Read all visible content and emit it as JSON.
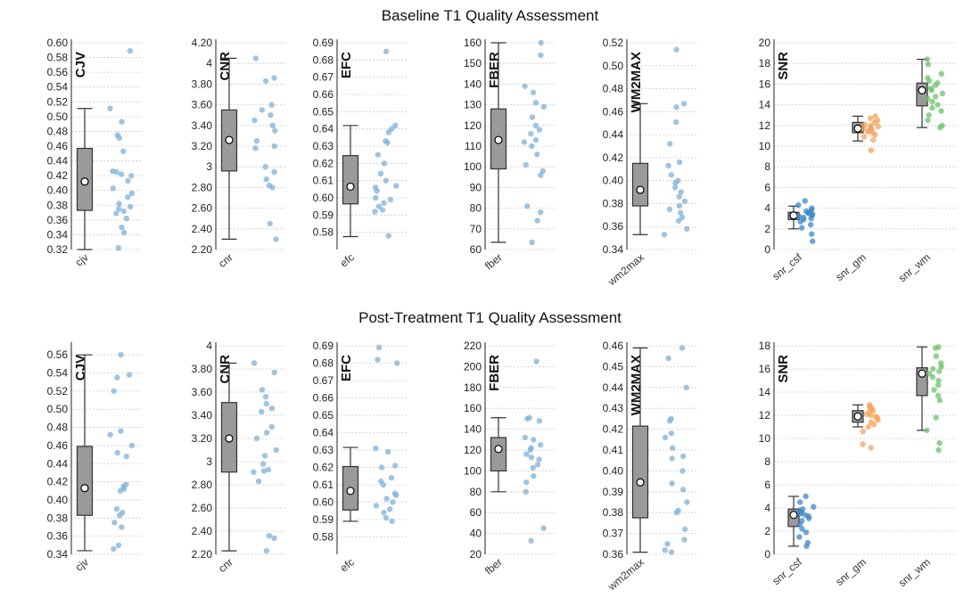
{
  "figure": {
    "title_top": "Baseline T1 Quality Assessment",
    "title_bottom": "Post-Treatment T1 Quality Assessment"
  },
  "colors": {
    "box_fill": "#9a9a9a",
    "box_stroke": "#333333",
    "median_marker": "#ffffff",
    "axis": "#222222",
    "grid": "#cccccc",
    "cjv_points": "#7fb0d8",
    "snr_csf": "#3f87c6",
    "snr_gm": "#f5a35c",
    "snr_wm": "#6ec26e"
  },
  "chart_data": [
    {
      "type": "box",
      "row": "baseline",
      "ylabel": "CJV",
      "ylim": [
        0.32,
        0.6
      ],
      "yticks": [
        "0.32",
        "0.34",
        "0.36",
        "0.38",
        "0.40",
        "0.42",
        "0.44",
        "0.46",
        "0.48",
        "0.50",
        "0.52",
        "0.54",
        "0.56",
        "0.58",
        "0.60"
      ],
      "series": [
        {
          "name": "cjv",
          "color": "#7fb0d8",
          "box": {
            "min": 0.32,
            "q1": 0.373,
            "median": 0.412,
            "q3": 0.457,
            "max": 0.511
          },
          "points": [
            0.589,
            0.511,
            0.493,
            0.475,
            0.471,
            0.453,
            0.426,
            0.425,
            0.422,
            0.42,
            0.413,
            0.403,
            0.396,
            0.391,
            0.382,
            0.378,
            0.375,
            0.372,
            0.369,
            0.362,
            0.35,
            0.343,
            0.322
          ]
        }
      ]
    },
    {
      "type": "box",
      "row": "baseline",
      "ylabel": "CNR",
      "ylim": [
        2.2,
        4.2
      ],
      "yticks": [
        "2.20",
        "2.40",
        "2.60",
        "2.80",
        "3",
        "3.20",
        "3.40",
        "3.60",
        "3.80",
        "4",
        "4.20"
      ],
      "series": [
        {
          "name": "cnr",
          "color": "#7fb0d8",
          "box": {
            "min": 2.3,
            "q1": 2.96,
            "median": 3.26,
            "q3": 3.55,
            "max": 4.05
          },
          "points": [
            4.05,
            3.86,
            3.83,
            3.6,
            3.55,
            3.5,
            3.45,
            3.4,
            3.35,
            3.25,
            3.2,
            3.18,
            3.0,
            2.95,
            2.88,
            2.82,
            2.8,
            2.45,
            2.3
          ]
        }
      ]
    },
    {
      "type": "box",
      "row": "baseline",
      "ylabel": "EFC",
      "ylim": [
        0.57,
        0.69
      ],
      "yticks": [
        "0.58",
        "0.59",
        "0.60",
        "0.61",
        "0.62",
        "0.63",
        "0.64",
        "0.65",
        "0.66",
        "0.67",
        "0.68",
        "0.69"
      ],
      "series": [
        {
          "name": "efc",
          "color": "#7fb0d8",
          "box": {
            "min": 0.5775,
            "q1": 0.5965,
            "median": 0.6065,
            "q3": 0.6245,
            "max": 0.642
          },
          "points": [
            0.685,
            0.642,
            0.64,
            0.638,
            0.633,
            0.632,
            0.625,
            0.62,
            0.614,
            0.61,
            0.607,
            0.606,
            0.604,
            0.6,
            0.599,
            0.597,
            0.595,
            0.593,
            0.592,
            0.578
          ]
        }
      ]
    },
    {
      "type": "box",
      "row": "baseline",
      "ylabel": "FBER",
      "ylim": [
        60,
        160
      ],
      "yticks": [
        "60",
        "70",
        "80",
        "90",
        "100",
        "110",
        "120",
        "130",
        "140",
        "150",
        "160"
      ],
      "series": [
        {
          "name": "fber",
          "color": "#7fb0d8",
          "box": {
            "min": 63.5,
            "q1": 99,
            "median": 113,
            "q3": 128,
            "max": 160
          },
          "points": [
            160,
            154,
            139,
            136,
            131,
            129,
            124,
            120,
            118,
            116,
            113,
            112,
            110,
            106,
            101,
            98,
            96,
            81,
            78,
            74,
            63.5
          ]
        }
      ]
    },
    {
      "type": "box",
      "row": "baseline",
      "ylabel": "WM2MAX",
      "ylim": [
        0.34,
        0.52
      ],
      "yticks": [
        "0.34",
        "0.36",
        "0.38",
        "0.40",
        "0.42",
        "0.44",
        "0.46",
        "0.48",
        "0.50",
        "0.52"
      ],
      "series": [
        {
          "name": "wm2max",
          "color": "#7fb0d8",
          "box": {
            "min": 0.353,
            "q1": 0.378,
            "median": 0.392,
            "q3": 0.415,
            "max": 0.467
          },
          "points": [
            0.514,
            0.467,
            0.464,
            0.451,
            0.432,
            0.416,
            0.413,
            0.405,
            0.4,
            0.398,
            0.394,
            0.39,
            0.386,
            0.382,
            0.378,
            0.375,
            0.372,
            0.368,
            0.365,
            0.358,
            0.353
          ]
        }
      ]
    },
    {
      "type": "box",
      "row": "baseline",
      "ylabel": "SNR",
      "ylim": [
        0,
        20
      ],
      "yticks": [
        "0",
        "2",
        "4",
        "6",
        "8",
        "10",
        "12",
        "14",
        "16",
        "18",
        "20"
      ],
      "series": [
        {
          "name": "snr_csf",
          "color": "#3f87c6",
          "box": {
            "min": 2.0,
            "q1": 2.9,
            "median": 3.3,
            "q3": 3.6,
            "max": 4.2
          },
          "points": [
            4.7,
            4.3,
            4.0,
            3.8,
            3.7,
            3.6,
            3.5,
            3.4,
            3.3,
            3.2,
            3.1,
            3.0,
            2.9,
            2.7,
            2.4,
            2.1,
            1.5,
            0.8
          ]
        },
        {
          "name": "snr_gm",
          "color": "#f5a35c",
          "box": {
            "min": 10.5,
            "q1": 11.3,
            "median": 11.7,
            "q3": 12.3,
            "max": 12.9
          },
          "points": [
            12.9,
            12.7,
            12.5,
            12.3,
            12.1,
            12.0,
            11.9,
            11.8,
            11.7,
            11.6,
            11.5,
            11.4,
            11.3,
            11.1,
            10.9,
            10.6,
            9.6
          ]
        },
        {
          "name": "snr_wm",
          "color": "#6ec26e",
          "box": {
            "min": 11.8,
            "q1": 13.9,
            "median": 15.4,
            "q3": 16.1,
            "max": 18.4
          },
          "points": [
            18.4,
            17.9,
            17.0,
            16.6,
            16.3,
            16.1,
            15.9,
            15.6,
            15.4,
            15.1,
            14.8,
            14.6,
            14.3,
            14.0,
            13.7,
            13.4,
            13.0,
            12.5,
            12.0,
            11.8
          ]
        }
      ]
    },
    {
      "type": "box",
      "row": "post",
      "ylabel": "CJV",
      "ylim": [
        0.34,
        0.57
      ],
      "yticks": [
        "0.34",
        "0.36",
        "0.38",
        "0.40",
        "0.42",
        "0.44",
        "0.46",
        "0.48",
        "0.50",
        "0.52",
        "0.54",
        "0.56"
      ],
      "series": [
        {
          "name": "cjv",
          "color": "#7fb0d8",
          "box": {
            "min": 0.344,
            "q1": 0.383,
            "median": 0.413,
            "q3": 0.459,
            "max": 0.56
          },
          "points": [
            0.56,
            0.538,
            0.535,
            0.52,
            0.476,
            0.472,
            0.46,
            0.452,
            0.448,
            0.417,
            0.415,
            0.412,
            0.41,
            0.39,
            0.386,
            0.383,
            0.375,
            0.37,
            0.35,
            0.346
          ]
        }
      ]
    },
    {
      "type": "box",
      "row": "post",
      "ylabel": "CNR",
      "ylim": [
        2.2,
        4.0
      ],
      "yticks": [
        "2.20",
        "2.40",
        "2.60",
        "2.80",
        "3",
        "3.20",
        "3.40",
        "3.60",
        "3.80",
        "4"
      ],
      "series": [
        {
          "name": "cnr",
          "color": "#7fb0d8",
          "box": {
            "min": 2.23,
            "q1": 2.91,
            "median": 3.2,
            "q3": 3.51,
            "max": 3.85
          },
          "points": [
            3.85,
            3.77,
            3.62,
            3.56,
            3.5,
            3.46,
            3.43,
            3.3,
            3.25,
            3.2,
            3.1,
            3.05,
            2.98,
            2.93,
            2.92,
            2.91,
            2.83,
            2.36,
            2.34,
            2.23
          ]
        }
      ]
    },
    {
      "type": "box",
      "row": "post",
      "ylabel": "EFC",
      "ylim": [
        0.57,
        0.69
      ],
      "yticks": [
        "0.58",
        "0.59",
        "0.60",
        "0.61",
        "0.62",
        "0.63",
        "0.64",
        "0.65",
        "0.66",
        "0.67",
        "0.68",
        "0.69"
      ],
      "series": [
        {
          "name": "efc",
          "color": "#7fb0d8",
          "box": {
            "min": 0.589,
            "q1": 0.5955,
            "median": 0.6065,
            "q3": 0.6205,
            "max": 0.6315
          },
          "points": [
            0.689,
            0.682,
            0.68,
            0.631,
            0.629,
            0.621,
            0.62,
            0.614,
            0.612,
            0.61,
            0.605,
            0.604,
            0.602,
            0.6,
            0.598,
            0.596,
            0.594,
            0.591,
            0.589
          ]
        }
      ]
    },
    {
      "type": "box",
      "row": "post",
      "ylabel": "FBER",
      "ylim": [
        20,
        220
      ],
      "yticks": [
        "20",
        "40",
        "60",
        "80",
        "100",
        "120",
        "140",
        "160",
        "180",
        "200",
        "220"
      ],
      "series": [
        {
          "name": "fber",
          "color": "#7fb0d8",
          "box": {
            "min": 80,
            "q1": 100,
            "median": 121,
            "q3": 132,
            "max": 151
          },
          "points": [
            205,
            151,
            150,
            148,
            132,
            130,
            125,
            122,
            120,
            116,
            113,
            111,
            106,
            103,
            95,
            89,
            80,
            45,
            33
          ]
        }
      ]
    },
    {
      "type": "box",
      "row": "post",
      "ylabel": "WM2MAX",
      "ylim": [
        0.36,
        0.46
      ],
      "yticks": [
        "0.36",
        "0.37",
        "0.38",
        "0.39",
        "0.40",
        "0.41",
        "0.42",
        "0.43",
        "0.44",
        "0.45",
        "0.46"
      ],
      "series": [
        {
          "name": "wm2max",
          "color": "#7fb0d8",
          "box": {
            "min": 0.361,
            "q1": 0.3775,
            "median": 0.3945,
            "q3": 0.4215,
            "max": 0.459
          },
          "points": [
            0.459,
            0.454,
            0.44,
            0.425,
            0.424,
            0.418,
            0.416,
            0.411,
            0.407,
            0.406,
            0.4,
            0.394,
            0.391,
            0.385,
            0.381,
            0.38,
            0.372,
            0.367,
            0.365,
            0.362,
            0.361
          ]
        }
      ]
    },
    {
      "type": "box",
      "row": "post",
      "ylabel": "SNR",
      "ylim": [
        0,
        18
      ],
      "yticks": [
        "0",
        "2",
        "4",
        "6",
        "8",
        "10",
        "12",
        "14",
        "16",
        "18"
      ],
      "series": [
        {
          "name": "snr_csf",
          "color": "#3f87c6",
          "box": {
            "min": 0.7,
            "q1": 2.4,
            "median": 3.4,
            "q3": 3.9,
            "max": 5.0
          },
          "points": [
            5.0,
            4.5,
            4.1,
            3.9,
            3.8,
            3.6,
            3.5,
            3.4,
            3.3,
            3.1,
            2.9,
            2.6,
            2.2,
            1.9,
            1.5,
            1.0,
            0.7
          ]
        },
        {
          "name": "snr_gm",
          "color": "#f5a35c",
          "box": {
            "min": 11.0,
            "q1": 11.4,
            "median": 11.9,
            "q3": 12.4,
            "max": 12.9
          },
          "points": [
            12.9,
            12.7,
            12.6,
            12.4,
            12.3,
            12.1,
            12.0,
            11.9,
            11.8,
            11.6,
            11.4,
            11.2,
            11.0,
            10.6,
            9.5,
            9.2
          ]
        },
        {
          "name": "snr_wm",
          "color": "#6ec26e",
          "box": {
            "min": 10.7,
            "q1": 13.7,
            "median": 15.6,
            "q3": 16.1,
            "max": 17.9
          },
          "points": [
            17.9,
            17.8,
            17.1,
            16.5,
            16.2,
            16.0,
            15.8,
            15.6,
            15.3,
            15.0,
            14.6,
            14.2,
            13.7,
            13.3,
            11.8,
            10.7,
            9.6,
            9.0
          ]
        }
      ]
    }
  ]
}
